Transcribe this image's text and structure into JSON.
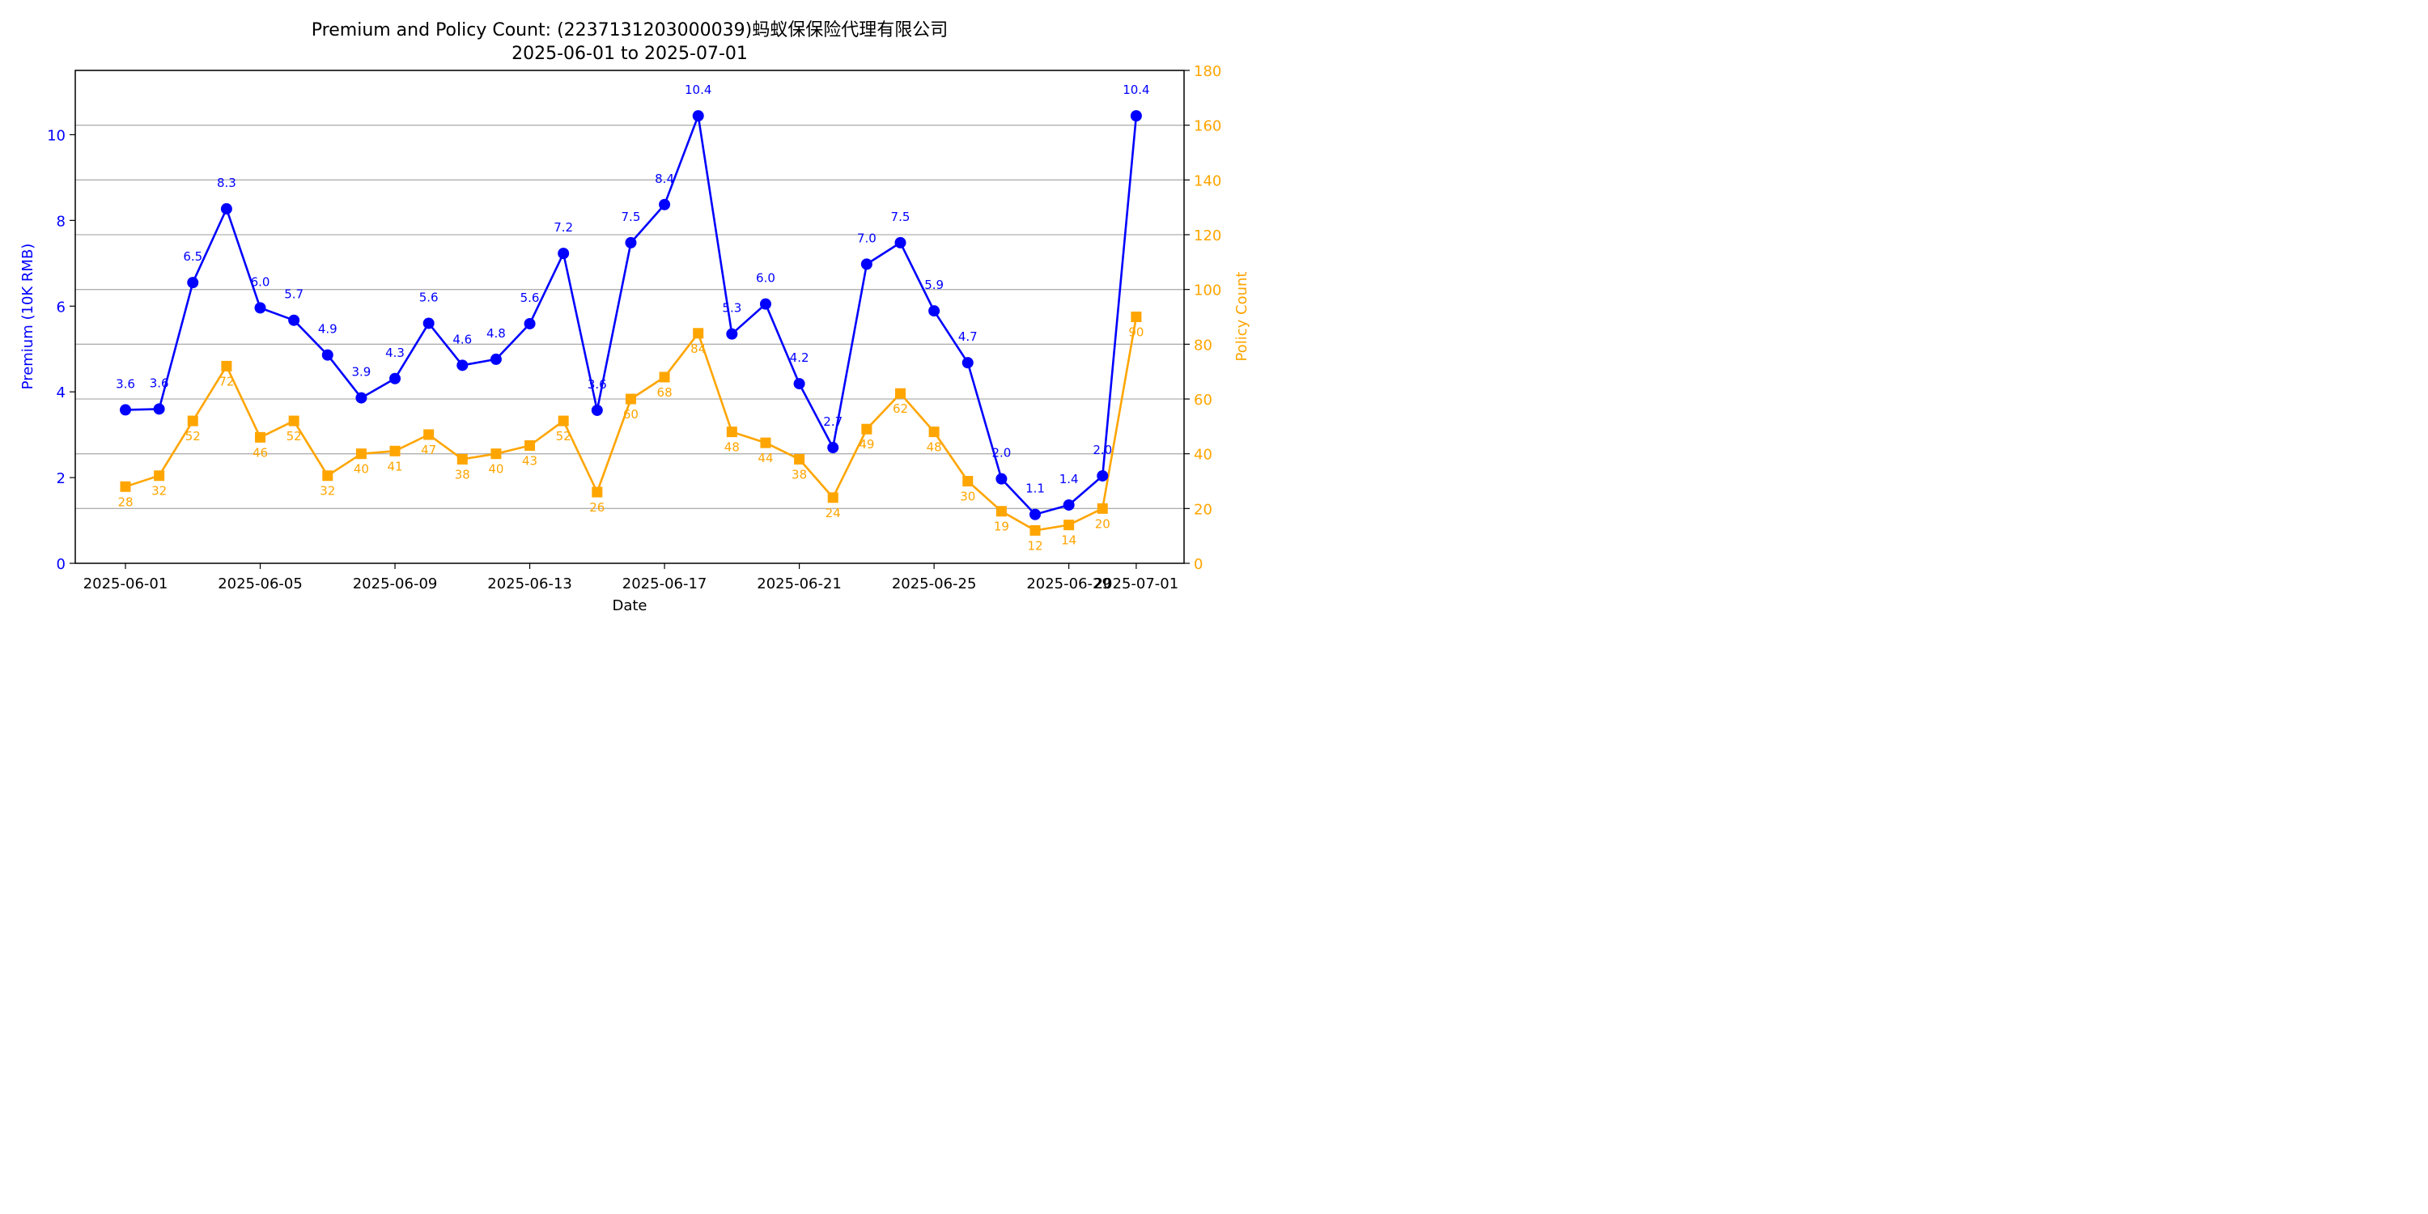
{
  "chart_data": {
    "type": "line",
    "title": "Premium and Policy Count: (2237131203000039)蚂蚁保保险代理有限公司",
    "subtitle": "2025-06-01 to 2025-07-01",
    "xlabel": "Date",
    "ylabel_left": "Premium (10K RMB)",
    "ylabel_right": "Policy Count",
    "x": [
      "2025-06-01",
      "2025-06-02",
      "2025-06-03",
      "2025-06-04",
      "2025-06-05",
      "2025-06-06",
      "2025-06-07",
      "2025-06-08",
      "2025-06-09",
      "2025-06-10",
      "2025-06-11",
      "2025-06-12",
      "2025-06-13",
      "2025-06-14",
      "2025-06-15",
      "2025-06-16",
      "2025-06-17",
      "2025-06-18",
      "2025-06-19",
      "2025-06-20",
      "2025-06-21",
      "2025-06-22",
      "2025-06-23",
      "2025-06-24",
      "2025-06-25",
      "2025-06-26",
      "2025-06-27",
      "2025-06-28",
      "2025-06-29",
      "2025-06-30",
      "2025-07-01"
    ],
    "x_ticks": [
      "2025-06-01",
      "2025-06-05",
      "2025-06-09",
      "2025-06-13",
      "2025-06-17",
      "2025-06-21",
      "2025-06-25",
      "2025-06-29",
      "2025-07-01"
    ],
    "ylim_left": [
      0,
      11.5
    ],
    "yticks_left": [
      0,
      2,
      4,
      6,
      8,
      10
    ],
    "ylim_right": [
      0,
      180
    ],
    "yticks_right": [
      0,
      20,
      40,
      60,
      80,
      100,
      120,
      140,
      160,
      180
    ],
    "grid": "horizontal lines at right-axis ticks",
    "series": [
      {
        "axis": "left",
        "color": "#0000ff",
        "marker": "circle",
        "values": [
          3.58,
          3.6,
          6.55,
          8.27,
          5.96,
          5.67,
          4.86,
          3.86,
          4.31,
          5.6,
          4.62,
          4.76,
          5.59,
          7.23,
          3.57,
          7.48,
          8.37,
          10.44,
          5.35,
          6.05,
          4.19,
          2.7,
          6.98,
          7.48,
          5.89,
          4.68,
          1.97,
          1.14,
          1.36,
          2.04,
          10.44
        ],
        "labels": [
          "3.6",
          "3.6",
          "6.5",
          "8.3",
          "6.0",
          "5.7",
          "4.9",
          "3.9",
          "4.3",
          "5.6",
          "4.6",
          "4.8",
          "5.6",
          "7.2",
          "3.6",
          "7.5",
          "8.4",
          "10.4",
          "5.3",
          "6.0",
          "4.2",
          "2.7",
          "7.0",
          "7.5",
          "5.9",
          "4.7",
          "2.0",
          "1.1",
          "1.4",
          "2.0",
          "10.4"
        ]
      },
      {
        "axis": "right",
        "color": "#ffa500",
        "marker": "square",
        "values": [
          28,
          32,
          52,
          72,
          46,
          52,
          32,
          40,
          41,
          47,
          38,
          40,
          43,
          52,
          26,
          60,
          68,
          84,
          48,
          44,
          38,
          24,
          49,
          62,
          48,
          30,
          19,
          12,
          14,
          20,
          90
        ],
        "labels": [
          "28",
          "32",
          "52",
          "72",
          "46",
          "52",
          "32",
          "40",
          "41",
          "47",
          "38",
          "40",
          "43",
          "52",
          "26",
          "60",
          "68",
          "84",
          "48",
          "44",
          "38",
          "24",
          "49",
          "62",
          "48",
          "30",
          "19",
          "12",
          "14",
          "20",
          "90"
        ]
      }
    ]
  }
}
